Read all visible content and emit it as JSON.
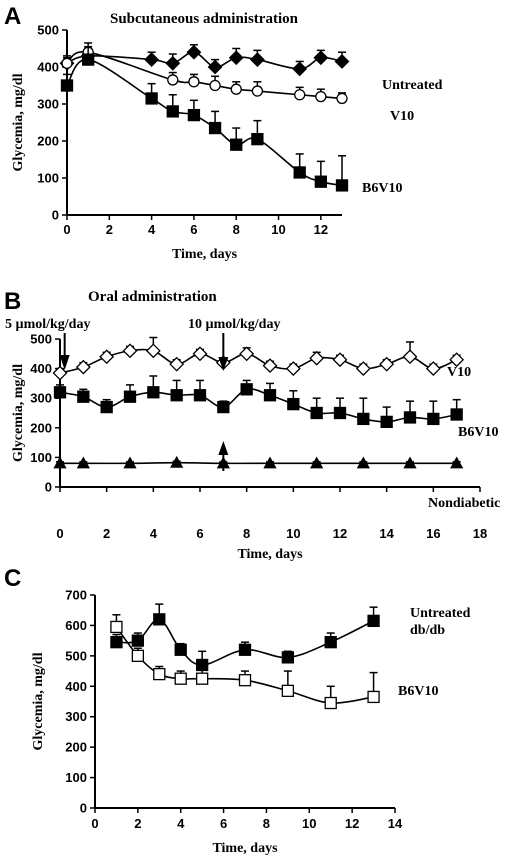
{
  "chart_data": [
    {
      "type": "line",
      "panel": "A",
      "title": "Subcutaneous administration",
      "xlabel": "Time, days",
      "ylabel": "Glycemia, mg/dl",
      "xlim": [
        0,
        13
      ],
      "ylim": [
        0,
        500
      ],
      "xticks": [
        0,
        2,
        4,
        6,
        8,
        10,
        12
      ],
      "yticks": [
        0,
        100,
        200,
        300,
        400,
        500
      ],
      "series": [
        {
          "name": "Untreated",
          "marker": "diamond-filled",
          "x": [
            0,
            1,
            4,
            5,
            6,
            7,
            8,
            9,
            11,
            12,
            13
          ],
          "y": [
            410,
            430,
            420,
            410,
            440,
            400,
            425,
            420,
            395,
            425,
            415
          ],
          "err": [
            15,
            20,
            20,
            25,
            20,
            20,
            25,
            25,
            20,
            20,
            25
          ]
        },
        {
          "name": "V10",
          "marker": "circle-open",
          "x": [
            0,
            1,
            5,
            6,
            7,
            8,
            9,
            11,
            12,
            13
          ],
          "y": [
            410,
            440,
            365,
            360,
            350,
            340,
            335,
            325,
            320,
            315
          ],
          "err": [
            20,
            25,
            20,
            20,
            25,
            20,
            25,
            20,
            20,
            15
          ]
        },
        {
          "name": "B6V10",
          "marker": "square-filled",
          "x": [
            0,
            1,
            4,
            5,
            6,
            7,
            8,
            9,
            11,
            12,
            13
          ],
          "y": [
            350,
            420,
            315,
            280,
            270,
            235,
            190,
            205,
            115,
            90,
            80
          ],
          "err": [
            30,
            35,
            40,
            45,
            40,
            45,
            45,
            50,
            50,
            55,
            80
          ]
        }
      ]
    },
    {
      "type": "line",
      "panel": "B",
      "title": "Oral administration",
      "xlabel": "Time, days",
      "ylabel": "Glycemia, mg/dl",
      "xlim": [
        0,
        18
      ],
      "ylim": [
        0,
        500
      ],
      "xticks": [
        0,
        2,
        4,
        6,
        8,
        10,
        12,
        14,
        16,
        18
      ],
      "yticks": [
        0,
        100,
        200,
        300,
        400,
        500
      ],
      "annotations": [
        "5 µmol/kg/day",
        "10 µmol/kg/day"
      ],
      "series": [
        {
          "name": "V10",
          "marker": "diamond-open",
          "x": [
            0,
            1,
            2,
            3,
            4,
            5,
            6,
            7,
            8,
            9,
            10,
            11,
            12,
            13,
            14,
            15,
            16,
            17
          ],
          "y": [
            385,
            405,
            440,
            460,
            460,
            415,
            450,
            420,
            450,
            410,
            400,
            435,
            430,
            400,
            415,
            440,
            400,
            430
          ],
          "err": [
            15,
            15,
            15,
            15,
            45,
            15,
            15,
            15,
            20,
            15,
            15,
            20,
            15,
            15,
            15,
            50,
            15,
            15
          ]
        },
        {
          "name": "B6V10",
          "marker": "square-filled",
          "x": [
            0,
            1,
            2,
            3,
            4,
            5,
            6,
            7,
            8,
            9,
            10,
            11,
            12,
            13,
            14,
            15,
            16,
            17
          ],
          "y": [
            320,
            305,
            270,
            305,
            320,
            310,
            310,
            270,
            330,
            310,
            280,
            250,
            250,
            230,
            220,
            235,
            230,
            245
          ],
          "err": [
            25,
            25,
            25,
            40,
            55,
            50,
            50,
            20,
            30,
            40,
            45,
            50,
            50,
            70,
            50,
            55,
            60,
            50
          ]
        },
        {
          "name": "Nondiabetic",
          "marker": "triangle-filled",
          "x": [
            0,
            1,
            3,
            5,
            7,
            9,
            11,
            13,
            15,
            17
          ],
          "y": [
            80,
            80,
            80,
            82,
            80,
            80,
            80,
            80,
            80,
            80
          ],
          "err": [
            5,
            5,
            5,
            5,
            5,
            5,
            5,
            5,
            5,
            5
          ]
        }
      ]
    },
    {
      "type": "line",
      "panel": "C",
      "title": "",
      "xlabel": "Time, days",
      "ylabel": "Glycemia, mg/dl",
      "xlim": [
        0,
        14
      ],
      "ylim": [
        0,
        700
      ],
      "xticks": [
        0,
        2,
        4,
        6,
        8,
        10,
        12,
        14
      ],
      "yticks": [
        0,
        100,
        200,
        300,
        400,
        500,
        600,
        700
      ],
      "series": [
        {
          "name": "Untreated db/db",
          "label_lines": [
            "Untreated",
            "db/db"
          ],
          "marker": "square-filled",
          "x": [
            1,
            2,
            3,
            4,
            5,
            7,
            9,
            11,
            13
          ],
          "y": [
            545,
            550,
            620,
            520,
            470,
            520,
            495,
            545,
            615
          ],
          "err": [
            25,
            25,
            50,
            20,
            45,
            25,
            20,
            30,
            45
          ]
        },
        {
          "name": "B6V10",
          "label_lines": [
            "B6V10"
          ],
          "marker": "square-open",
          "x": [
            1,
            2,
            3,
            4,
            5,
            7,
            9,
            11,
            13
          ],
          "y": [
            595,
            500,
            440,
            425,
            425,
            420,
            385,
            345,
            365
          ],
          "err": [
            40,
            25,
            25,
            25,
            30,
            30,
            65,
            55,
            80
          ]
        }
      ]
    }
  ],
  "panels": [
    {
      "letter": "A"
    },
    {
      "letter": "B"
    },
    {
      "letter": "C"
    }
  ]
}
